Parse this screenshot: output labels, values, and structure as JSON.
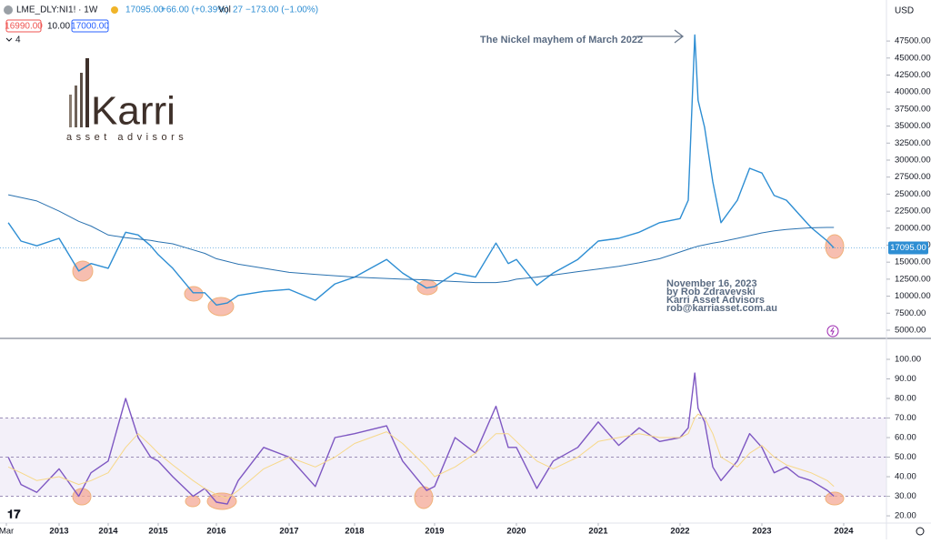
{
  "header": {
    "symbol": "LME_DLY:NI1! · 1W",
    "price": "17095.00",
    "change": "+66.00 (+0.39%)",
    "volume_label": "Vol",
    "volume": "27",
    "volume_change": "−173.00 (−1.00%)",
    "bid": "16990.00",
    "spread": "10.00",
    "ask": "17000.00",
    "indicator_count": "4",
    "currency": "USD"
  },
  "logo": {
    "name": "Karri",
    "tagline": "asset advisors"
  },
  "chart_data": [
    {
      "type": "line",
      "annotations": [
        "The Nickel mayhem of March 2022",
        "November 16, 2023",
        "by Rob Zdravevski",
        "Karri Asset Advisors",
        "rob@karriasset.com.au"
      ],
      "x": [
        2012.2,
        2012.4,
        2012.65,
        2013.0,
        2013.4,
        2013.65,
        2014.0,
        2014.35,
        2014.6,
        2014.85,
        2015.0,
        2015.25,
        2015.6,
        2015.8,
        2016.0,
        2016.15,
        2016.3,
        2016.65,
        2017.0,
        2017.4,
        2017.7,
        2018.0,
        2018.4,
        2018.6,
        2018.9,
        2019.0,
        2019.25,
        2019.5,
        2019.75,
        2019.9,
        2020.0,
        2020.25,
        2020.45,
        2020.75,
        2021.0,
        2021.25,
        2021.5,
        2021.75,
        2022.0,
        2022.1,
        2022.18,
        2022.22,
        2022.3,
        2022.4,
        2022.5,
        2022.7,
        2022.85,
        2023.0,
        2023.15,
        2023.3,
        2023.45,
        2023.6,
        2023.8,
        2023.88
      ],
      "series": [
        {
          "color": "#2e8ed3",
          "values": [
            20800,
            18100,
            17400,
            18500,
            13700,
            14800,
            14100,
            19400,
            19000,
            17400,
            16100,
            14100,
            10500,
            10500,
            8700,
            9000,
            10100,
            10700,
            11000,
            9400,
            11800,
            12800,
            15400,
            13400,
            11200,
            11400,
            13400,
            12800,
            17800,
            14800,
            15400,
            11600,
            13400,
            15400,
            18100,
            18500,
            19400,
            20800,
            21400,
            24100,
            48400,
            38800,
            34800,
            26800,
            20800,
            24100,
            28800,
            28100,
            24800,
            24100,
            22100,
            20100,
            18100,
            17095
          ]
        },
        {
          "color": "#2a72b0",
          "values": [
            24900,
            24500,
            24000,
            22500,
            21000,
            20300,
            19000,
            18600,
            18400,
            18200,
            18000,
            17700,
            16800,
            16300,
            15500,
            15100,
            14700,
            14100,
            13500,
            13200,
            13000,
            12800,
            12600,
            12500,
            12400,
            12300,
            12150,
            12000,
            12000,
            12200,
            12500,
            12800,
            13100,
            13600,
            14000,
            14400,
            14900,
            15500,
            16500,
            16900,
            17200,
            17350,
            17550,
            17800,
            18000,
            18500,
            18900,
            19300,
            19600,
            19800,
            19950,
            20050,
            20100,
            20100
          ]
        }
      ],
      "last_price": {
        "value": 17095,
        "label": "17095.00"
      },
      "ylim": [
        4060,
        53530
      ],
      "yticks": [
        {
          "value": 5000,
          "label": "5000.00"
        },
        {
          "value": 7500,
          "label": "7500.00"
        },
        {
          "value": 10000,
          "label": "10000.00"
        },
        {
          "value": 12500,
          "label": "12500.00"
        },
        {
          "value": 15000,
          "label": "15000.00"
        },
        {
          "value": 17500,
          "label": "17500.00"
        },
        {
          "value": 20000,
          "label": "20000.00"
        },
        {
          "value": 22500,
          "label": "22500.00"
        },
        {
          "value": 25000,
          "label": "25000.00"
        },
        {
          "value": 27500,
          "label": "27500.00"
        },
        {
          "value": 30000,
          "label": "30000.00"
        },
        {
          "value": 32500,
          "label": "32500.00"
        },
        {
          "value": 35000,
          "label": "35000.00"
        },
        {
          "value": 37500,
          "label": "37500.00"
        },
        {
          "value": 40000,
          "label": "40000.00"
        },
        {
          "value": 42500,
          "label": "42500.00"
        },
        {
          "value": 45000,
          "label": "45000.00"
        },
        {
          "value": 47500,
          "label": "47500.00"
        }
      ],
      "xlim": [
        2012.07,
        2024.52
      ],
      "xticks": [
        {
          "value": 2012.17,
          "label": "Mar"
        },
        2013,
        2014,
        2015,
        2016,
        2017,
        2018,
        2019,
        2020,
        2021,
        2022,
        2023,
        2024
      ]
    },
    {
      "type": "line",
      "x": [
        2012.2,
        2012.4,
        2012.65,
        2013.0,
        2013.4,
        2013.65,
        2014.0,
        2014.35,
        2014.6,
        2014.85,
        2015.0,
        2015.25,
        2015.6,
        2015.8,
        2016.0,
        2016.15,
        2016.3,
        2016.65,
        2017.0,
        2017.4,
        2017.7,
        2018.0,
        2018.4,
        2018.6,
        2018.9,
        2019.0,
        2019.25,
        2019.5,
        2019.75,
        2019.9,
        2020.0,
        2020.25,
        2020.45,
        2020.75,
        2021.0,
        2021.25,
        2021.5,
        2021.75,
        2022.0,
        2022.1,
        2022.18,
        2022.22,
        2022.3,
        2022.4,
        2022.5,
        2022.7,
        2022.85,
        2023.0,
        2023.15,
        2023.3,
        2023.45,
        2023.6,
        2023.8,
        2023.88
      ],
      "series": [
        {
          "color": "#7e57c2",
          "values": [
            50,
            36,
            32,
            44,
            30,
            42,
            48,
            80,
            60,
            50,
            48,
            40,
            30,
            34,
            27,
            26,
            38,
            55,
            50,
            35,
            60,
            62,
            66,
            48,
            33,
            35,
            60,
            52,
            76,
            55,
            55,
            34,
            48,
            55,
            68,
            56,
            65,
            58,
            60,
            65,
            93,
            75,
            68,
            45,
            38,
            48,
            62,
            55,
            42,
            45,
            40,
            38,
            33,
            30
          ]
        },
        {
          "color": "#f7d889",
          "values": [
            45,
            42,
            38,
            40,
            36,
            38,
            42,
            55,
            62,
            56,
            52,
            46,
            38,
            34,
            31,
            29,
            33,
            44,
            50,
            45,
            50,
            57,
            63,
            57,
            45,
            40,
            45,
            52,
            62,
            62,
            58,
            48,
            44,
            50,
            58,
            60,
            62,
            60,
            60,
            62,
            70,
            72,
            70,
            62,
            50,
            45,
            52,
            56,
            50,
            46,
            44,
            42,
            38,
            35
          ]
        }
      ],
      "bands": [
        30,
        50,
        70
      ],
      "ylim": [
        16.3,
        109.3
      ],
      "yticks": [
        {
          "value": 20,
          "label": "20.00"
        },
        {
          "value": 30,
          "label": "30.00"
        },
        {
          "value": 40,
          "label": "40.00"
        },
        {
          "value": 50,
          "label": "50.00"
        },
        {
          "value": 60,
          "label": "60.00"
        },
        {
          "value": 70,
          "label": "70.00"
        },
        {
          "value": 80,
          "label": "80.00"
        },
        {
          "value": 90,
          "label": "90.00"
        },
        {
          "value": 100,
          "label": "100.00"
        }
      ]
    }
  ]
}
